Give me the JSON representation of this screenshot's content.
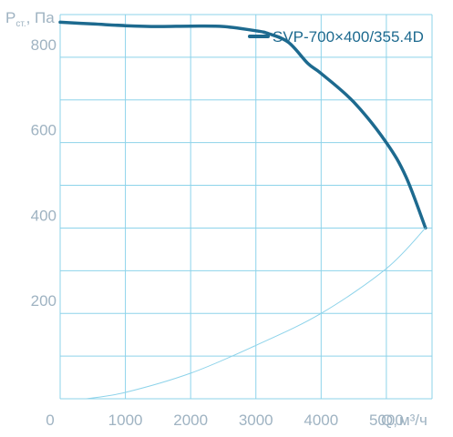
{
  "chart_data": {
    "type": "line",
    "title": "",
    "ylabel": {
      "main": "P",
      "sub": "ст.",
      "rest": ", Па"
    },
    "xlabel": {
      "main": "Q,",
      "rest": "м³/ч"
    },
    "xlim": [
      0,
      5700
    ],
    "ylim": [
      0,
      900
    ],
    "x_ticks": [
      "0",
      "1000",
      "2000",
      "3000",
      "4000",
      "5000"
    ],
    "x_tick_values": [
      0,
      1000,
      2000,
      3000,
      4000,
      5000
    ],
    "y_ticks": [
      "200",
      "400",
      "600",
      "800"
    ],
    "y_tick_values": [
      200,
      400,
      600,
      800
    ],
    "grid": true,
    "legend_position": "top-right",
    "colors": {
      "curve": "#1d6a8f",
      "system_line": "#8dd3ea",
      "grid": "#8dd3ea",
      "ticks": "#9fb3c2"
    },
    "series": [
      {
        "name": "SVP-700×400/355.4D",
        "x": [
          0,
          500,
          1000,
          1500,
          2000,
          2500,
          3000,
          3200,
          3500,
          3800,
          4000,
          4500,
          5000,
          5300,
          5600
        ],
        "y": [
          882,
          878,
          874,
          872,
          873,
          872,
          862,
          855,
          835,
          785,
          762,
          695,
          600,
          520,
          400
        ]
      },
      {
        "name": "",
        "x": [
          400,
          1000,
          2000,
          3000,
          4000,
          5000,
          5600
        ],
        "y": [
          0,
          15,
          60,
          125,
          200,
          305,
          400
        ]
      }
    ]
  }
}
